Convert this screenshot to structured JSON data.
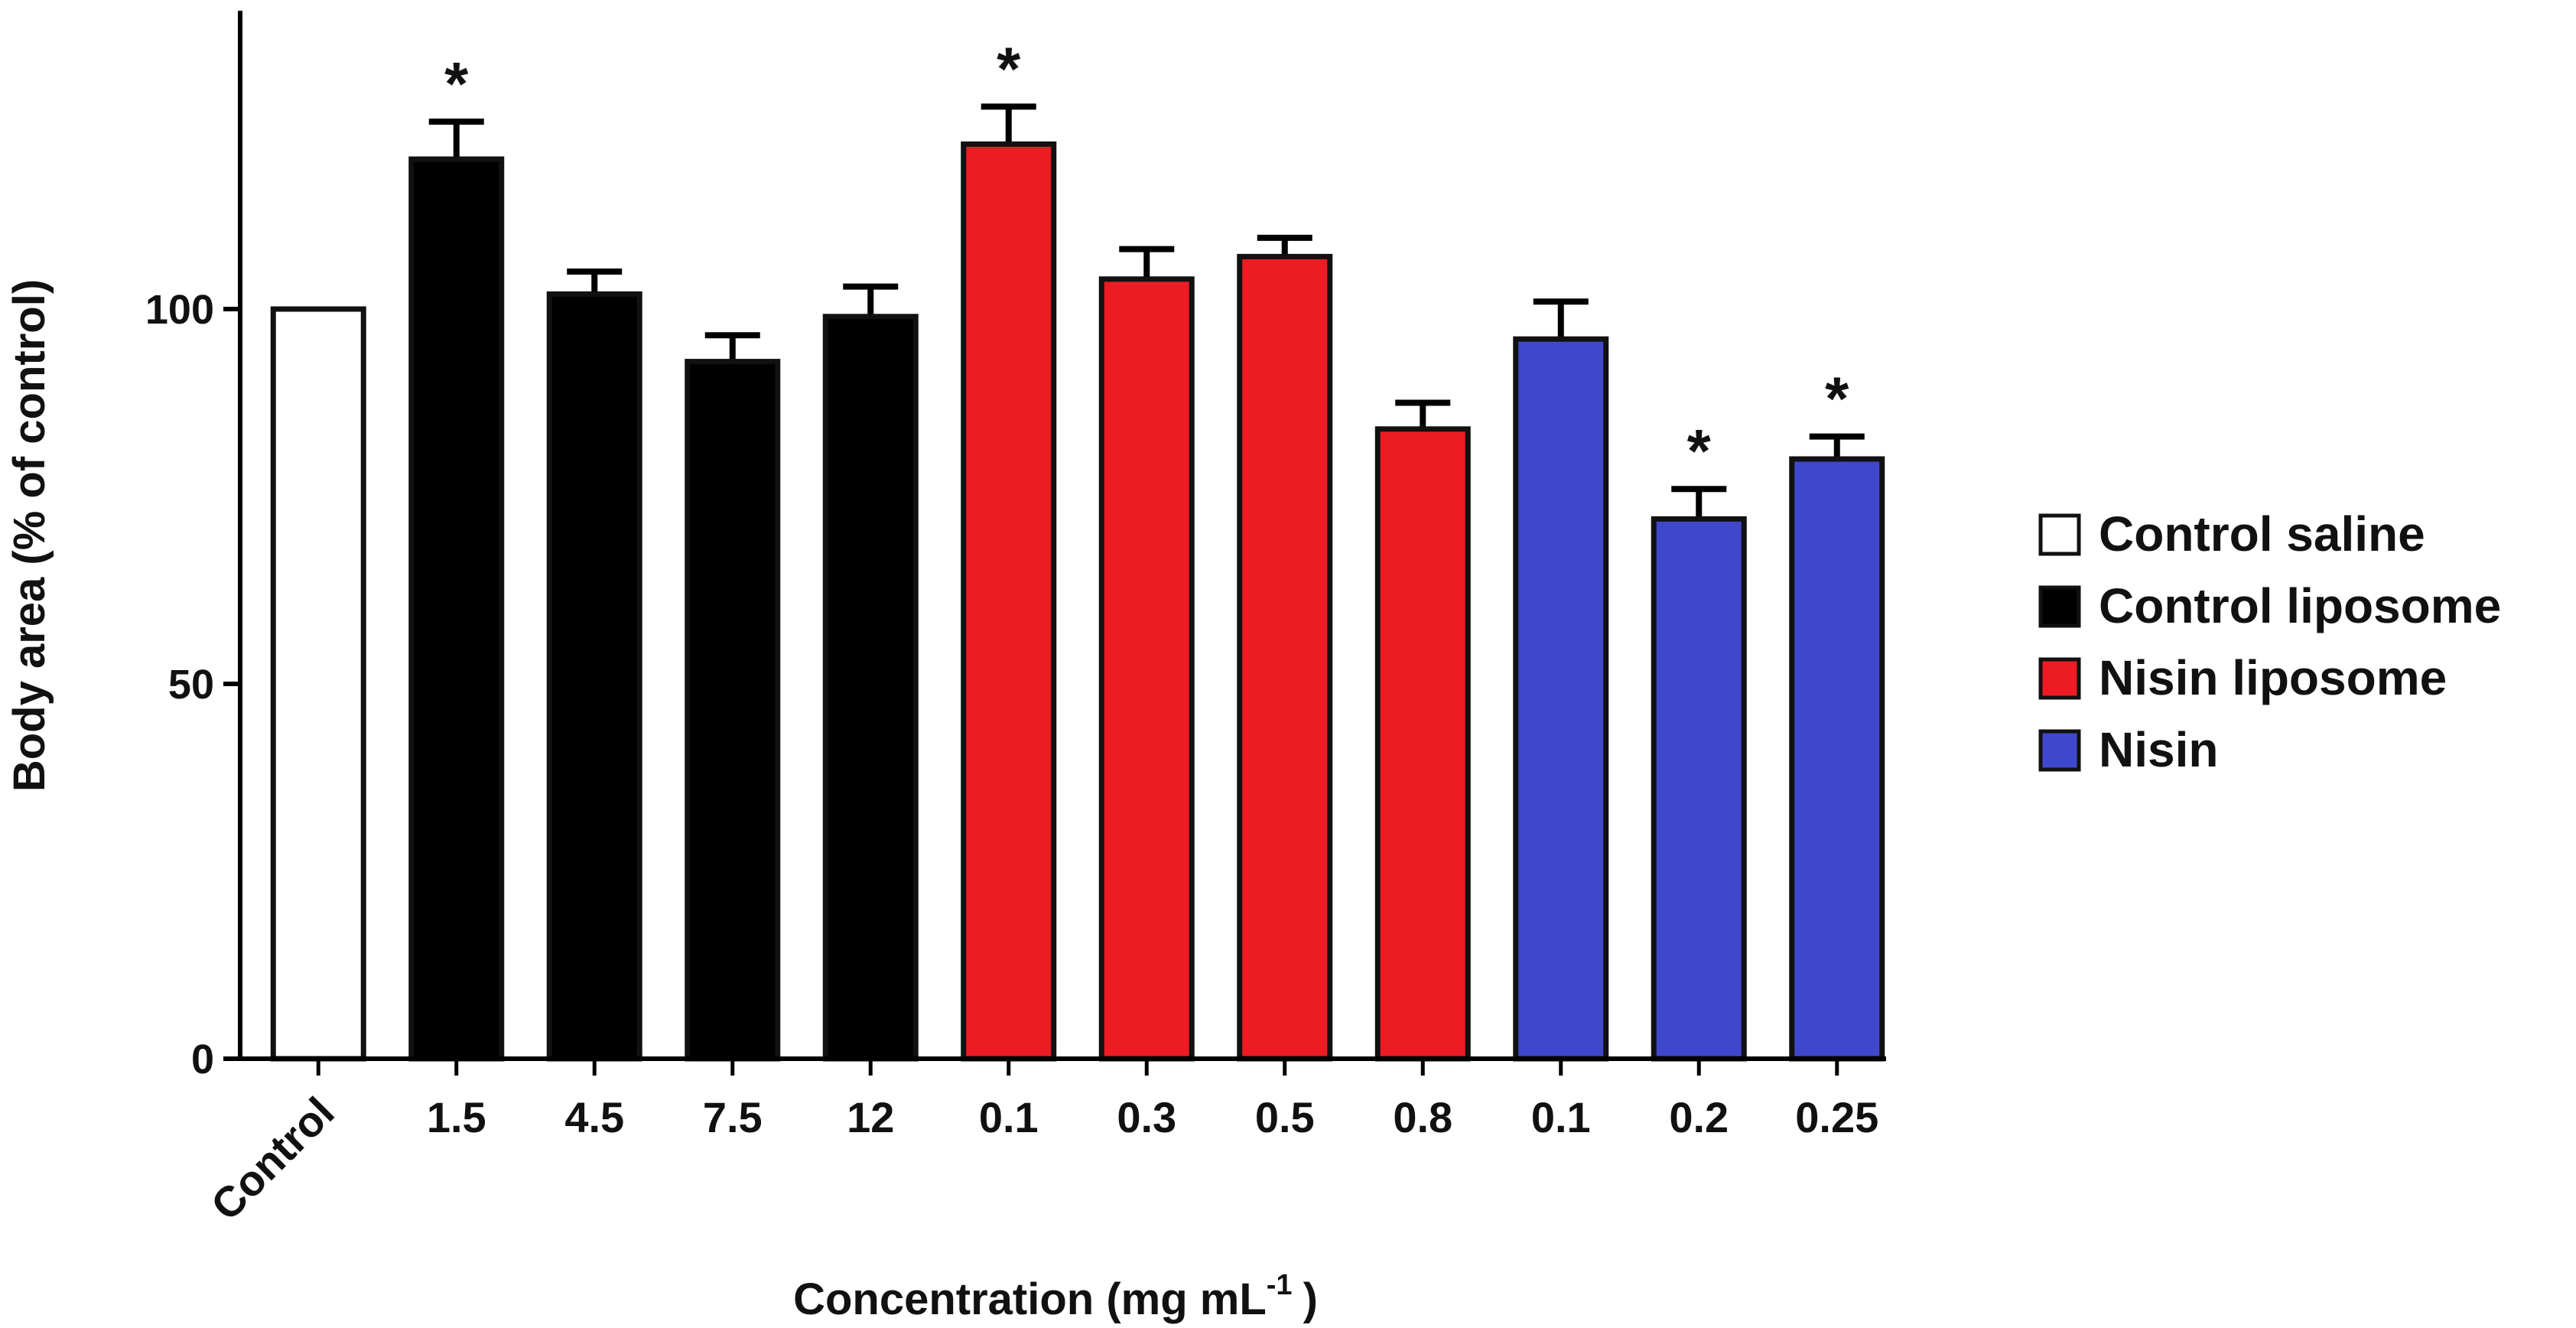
{
  "chart_data": {
    "type": "bar",
    "title": "",
    "xlabel": "Concentration (mg mL",
    "xlabel_superscript": "-1",
    "xlabel_close": ")",
    "ylabel": "Body area  (% of control)",
    "ylim": [
      0,
      140
    ],
    "yticks": [
      0,
      50,
      100
    ],
    "grid": false,
    "legend_position": "right",
    "categories": [
      "Control",
      "1.5",
      "4.5",
      "7.5",
      "12",
      "0.1",
      "0.3",
      "0.5",
      "0.8",
      "0.1",
      "0.2",
      "0.25"
    ],
    "values": [
      100,
      120,
      102,
      93,
      99,
      122,
      104,
      107,
      84,
      96,
      72,
      80
    ],
    "errors": [
      0,
      5,
      3,
      3.5,
      4,
      5,
      4,
      2.5,
      3.5,
      5,
      4,
      3
    ],
    "groups": [
      "Control saline",
      "Control liposome",
      "Control liposome",
      "Control liposome",
      "Control liposome",
      "Nisin liposome",
      "Nisin liposome",
      "Nisin liposome",
      "Nisin liposome",
      "Nisin",
      "Nisin",
      "Nisin"
    ],
    "significant": [
      false,
      true,
      false,
      false,
      false,
      true,
      false,
      false,
      false,
      false,
      true,
      true
    ],
    "significance_marker": "*",
    "series": [
      {
        "name": "Control saline",
        "color": "#ffffff"
      },
      {
        "name": "Control liposome",
        "color": "#000000"
      },
      {
        "name": "Nisin liposome",
        "color": "#ed1c24"
      },
      {
        "name": "Nisin",
        "color": "#3f48cc"
      }
    ]
  }
}
